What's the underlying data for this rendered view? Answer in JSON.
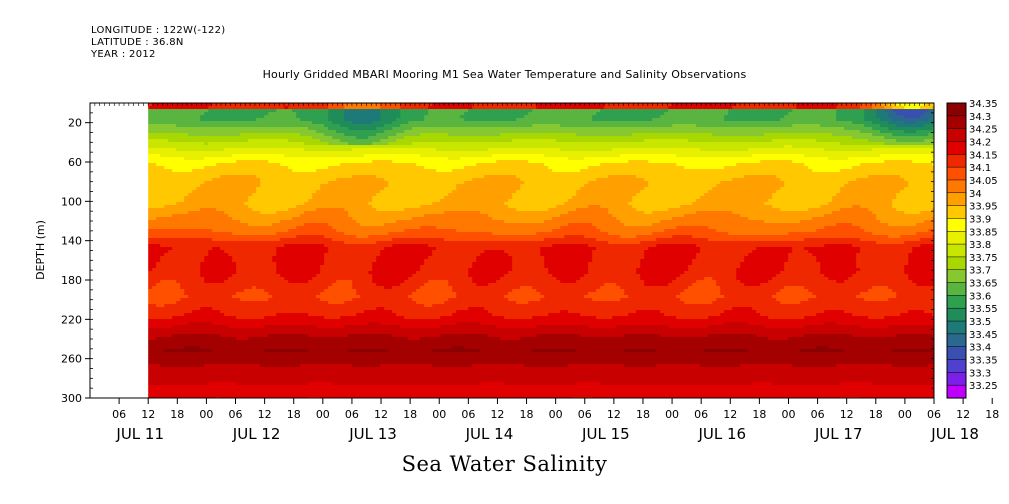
{
  "meta": {
    "longitude": "LONGITUDE : 122W(-122)",
    "latitude": "LATITUDE : 36.8N",
    "year": "YEAR : 2012"
  },
  "chart_data": {
    "type": "heatmap",
    "title": "Hourly Gridded MBARI Mooring M1 Sea Water Temperature and Salinity Observations",
    "bottom_title": "Sea Water Salinity",
    "ylabel": "DEPTH (m)",
    "xlabel": "",
    "ylim": [
      300,
      0
    ],
    "y_ticks": [
      "20",
      "60",
      "100",
      "140",
      "180",
      "220",
      "260",
      "300"
    ],
    "y_tick_values": [
      20,
      60,
      100,
      140,
      180,
      220,
      260,
      300
    ],
    "x_hour_ticks": [
      "06",
      "12",
      "18",
      "00",
      "06",
      "12",
      "18",
      "00",
      "06",
      "12",
      "18",
      "00",
      "06",
      "12",
      "18",
      "00",
      "06",
      "12",
      "18",
      "00",
      "06",
      "12",
      "18",
      "00",
      "06",
      "12",
      "18",
      "00",
      "06",
      "12",
      "18",
      "00"
    ],
    "x_day_labels": [
      "JUL 11",
      "JUL 12",
      "JUL 13",
      "JUL 14",
      "JUL 15",
      "JUL 16",
      "JUL 17",
      "JUL 18"
    ],
    "x_start": "2012-07-11 00:00",
    "data_start": "2012-07-11 12:00",
    "x_end": "2012-07-18 06:00",
    "colorbar_levels": [
      "34.35",
      "34.3",
      "34.25",
      "34.2",
      "34.15",
      "34.1",
      "34.05",
      "34",
      "33.95",
      "33.9",
      "33.85",
      "33.8",
      "33.75",
      "33.7",
      "33.65",
      "33.6",
      "33.55",
      "33.5",
      "33.45",
      "33.4",
      "33.35",
      "33.3",
      "33.25"
    ],
    "colorbar_colors": [
      "#8b0000",
      "#a50000",
      "#c80000",
      "#e00000",
      "#f02800",
      "#ff5000",
      "#ff7800",
      "#ffa000",
      "#ffc800",
      "#ffff00",
      "#e8f000",
      "#c8e600",
      "#a8d800",
      "#86c830",
      "#5ab440",
      "#2ea050",
      "#208c5a",
      "#1e7a78",
      "#2a6890",
      "#3a50b0",
      "#5040d0",
      "#7a20e8",
      "#c000ff"
    ],
    "depth_profile": [
      {
        "depth": 5,
        "value": 33.65
      },
      {
        "depth": 15,
        "value": 33.65
      },
      {
        "depth": 30,
        "value": 33.75
      },
      {
        "depth": 45,
        "value": 33.85
      },
      {
        "depth": 60,
        "value": 33.95
      },
      {
        "depth": 80,
        "value": 34.0
      },
      {
        "depth": 100,
        "value": 34.0
      },
      {
        "depth": 115,
        "value": 34.05
      },
      {
        "depth": 130,
        "value": 34.1
      },
      {
        "depth": 145,
        "value": 34.2
      },
      {
        "depth": 170,
        "value": 34.2
      },
      {
        "depth": 195,
        "value": 34.15
      },
      {
        "depth": 215,
        "value": 34.2
      },
      {
        "depth": 235,
        "value": 34.3
      },
      {
        "depth": 250,
        "value": 34.35
      },
      {
        "depth": 265,
        "value": 34.3
      },
      {
        "depth": 285,
        "value": 34.25
      },
      {
        "depth": 300,
        "value": 34.2
      }
    ]
  }
}
